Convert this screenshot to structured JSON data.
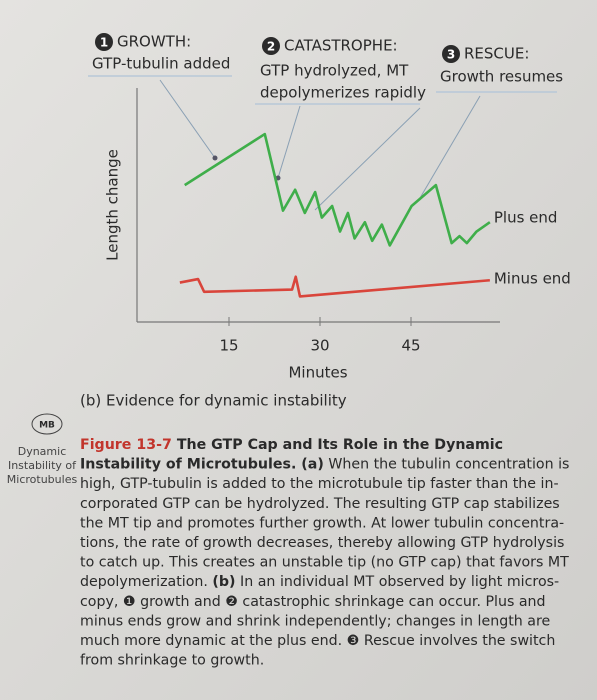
{
  "chart_data": {
    "type": "line",
    "y_label": "Length change",
    "x_label": "Minutes",
    "caption": "(b) Evidence for dynamic instability",
    "xlim": [
      0,
      60
    ],
    "xticks": [
      15,
      30,
      45
    ],
    "ylim": [
      0,
      10
    ],
    "series": [
      {
        "name": "Plus end",
        "color": "#3fae4a",
        "x": [
          7.7,
          20.9,
          23.9,
          25.9,
          27.5,
          29.2,
          30.3,
          32.0,
          33.3,
          34.6,
          35.7,
          37.4,
          38.6,
          40.2,
          41.5,
          45.1,
          49.1,
          51.7,
          53.0,
          54.2,
          55.8,
          58.0
        ],
        "values": [
          5.9,
          8.1,
          4.8,
          5.7,
          4.7,
          5.6,
          4.5,
          5.0,
          3.9,
          4.7,
          3.6,
          4.3,
          3.5,
          4.2,
          3.3,
          5.0,
          5.9,
          3.4,
          3.7,
          3.4,
          3.9,
          4.3
        ]
      },
      {
        "name": "Minus end",
        "color": "#d9453b",
        "x": [
          6.9,
          9.9,
          10.9,
          25.4,
          26.0,
          26.7,
          58.0
        ],
        "values": [
          1.7,
          1.85,
          1.3,
          1.4,
          1.95,
          1.1,
          1.8
        ]
      }
    ],
    "annotations": [
      {
        "number": "1",
        "lines": [
          "GROWTH:",
          "GTP-tubulin added"
        ]
      },
      {
        "number": "2",
        "lines": [
          "CATASTROPHE:",
          "GTP hydrolyzed, MT",
          "depolymerizes rapidly"
        ]
      },
      {
        "number": "3",
        "lines": [
          "RESCUE:",
          "Growth resumes"
        ]
      }
    ]
  },
  "margin": {
    "badge": "MB",
    "note": [
      "Dynamic",
      "Instability of",
      "Microtubules"
    ]
  },
  "figure_caption": {
    "lines": [
      [
        {
          "text": "Figure 13-7",
          "style": "label"
        },
        {
          "text": " The GTP Cap and Its Role in the Dynamic",
          "style": "bold"
        }
      ],
      [
        {
          "text": "Instability of Microtubules. (a)",
          "style": "bold"
        },
        {
          "text": " When the tubulin concentration is",
          "style": "normal"
        }
      ],
      [
        {
          "text": "high, GTP-tubulin is added to the microtubule tip faster than the in-",
          "style": "normal"
        }
      ],
      [
        {
          "text": "corporated GTP can be hydrolyzed. The resulting GTP cap stabilizes",
          "style": "normal"
        }
      ],
      [
        {
          "text": "the MT tip and promotes further growth. At lower tubulin concentra-",
          "style": "normal"
        }
      ],
      [
        {
          "text": "tions, the rate of growth decreases, thereby allowing GTP hydrolysis",
          "style": "normal"
        }
      ],
      [
        {
          "text": "to catch up. This creates an unstable tip (no GTP cap) that favors MT",
          "style": "normal"
        }
      ],
      [
        {
          "text": "depolymerization. ",
          "style": "normal"
        },
        {
          "text": "(b)",
          "style": "bold"
        },
        {
          "text": " In an individual MT observed by light micros-",
          "style": "normal"
        }
      ],
      [
        {
          "text": "copy, ❶ growth and ❷ catastrophic shrinkage can occur. Plus and",
          "style": "normal"
        }
      ],
      [
        {
          "text": "minus ends grow and shrink independently; changes in length are",
          "style": "normal"
        }
      ],
      [
        {
          "text": "much more dynamic at the plus end. ❸ Rescue involves the switch",
          "style": "normal"
        }
      ],
      [
        {
          "text": "from shrinkage to growth.",
          "style": "normal"
        }
      ]
    ]
  }
}
